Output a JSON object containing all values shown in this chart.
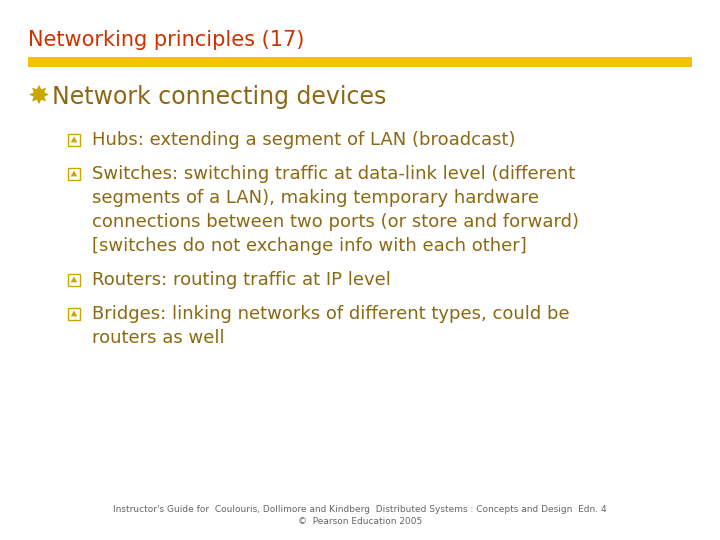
{
  "title": "Networking principles (17)",
  "title_color": "#CC3300",
  "title_fontsize": 15,
  "bar_color": "#F5C200",
  "background_color": "#FFFFFF",
  "heading": "Network connecting devices",
  "heading_color": "#8B6914",
  "heading_fontsize": 17,
  "heading_bullet": "✸",
  "heading_bullet_color": "#C8A800",
  "sub_bullet_color": "#C8A800",
  "sub_bullet_fontsize": 11,
  "text_color": "#8B6914",
  "text_fontsize": 13,
  "items": [
    {
      "bullet_line": "Hubs: extending a segment of LAN (broadcast)",
      "continuation": []
    },
    {
      "bullet_line": "Switches: switching traffic at data-link level (different",
      "continuation": [
        "segments of a LAN), making temporary hardware",
        "connections between two ports (or store and forward)",
        "[switches do not exchange info with each other]"
      ]
    },
    {
      "bullet_line": "Routers: routing traffic at IP level",
      "continuation": []
    },
    {
      "bullet_line": "Bridges: linking networks of different types, could be",
      "continuation": [
        "routers as well"
      ]
    }
  ],
  "footer_line1": "Instructor's Guide for  Coulouris, Dollimore and Kindberg  Distributed Systems : Concepts and Design  Edn. 4",
  "footer_line2": "©  Pearson Education 2005",
  "footer_color": "#666666",
  "footer_fontsize": 6.5
}
